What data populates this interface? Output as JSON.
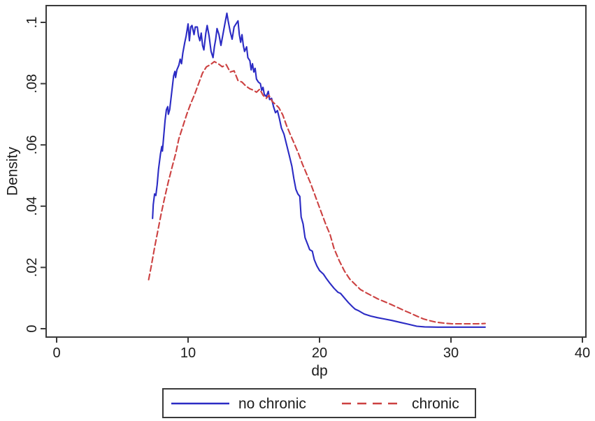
{
  "figure": {
    "background": "#ffffff",
    "border_color": "#3a3a3a",
    "text_color": "#1c1c1c"
  },
  "chart_data": {
    "type": "line",
    "title": "",
    "xlabel": "dp",
    "ylabel": "Density",
    "xlim": [
      0,
      40
    ],
    "ylim": [
      0,
      0.105
    ],
    "grid": false,
    "x_ticks": {
      "values": [
        0,
        10,
        20,
        30,
        40
      ],
      "labels": [
        "0",
        "10",
        "20",
        "30",
        "40"
      ]
    },
    "y_ticks": {
      "values": [
        0,
        0.02,
        0.04,
        0.06,
        0.08,
        0.1
      ],
      "labels": [
        "0",
        ".02",
        ".04",
        ".06",
        ".08",
        ".1"
      ]
    },
    "legend": {
      "position": "bottom-center",
      "entries": [
        "no chronic",
        "chronic"
      ]
    },
    "series": [
      {
        "name": "no chronic",
        "color": "#2b2bc4",
        "style": "solid",
        "points": [
          [
            7.3,
            0.036
          ],
          [
            7.35,
            0.0405
          ],
          [
            7.45,
            0.044
          ],
          [
            7.55,
            0.0435
          ],
          [
            7.65,
            0.047
          ],
          [
            7.75,
            0.052
          ],
          [
            7.9,
            0.057
          ],
          [
            8.0,
            0.0595
          ],
          [
            8.05,
            0.058
          ],
          [
            8.15,
            0.063
          ],
          [
            8.25,
            0.068
          ],
          [
            8.35,
            0.0715
          ],
          [
            8.45,
            0.0725
          ],
          [
            8.5,
            0.07
          ],
          [
            8.6,
            0.0715
          ],
          [
            8.75,
            0.077
          ],
          [
            8.9,
            0.0825
          ],
          [
            9.0,
            0.084
          ],
          [
            9.05,
            0.082
          ],
          [
            9.15,
            0.0845
          ],
          [
            9.3,
            0.086
          ],
          [
            9.4,
            0.088
          ],
          [
            9.5,
            0.0865
          ],
          [
            9.6,
            0.09
          ],
          [
            9.75,
            0.0935
          ],
          [
            9.85,
            0.0955
          ],
          [
            10.0,
            0.0995
          ],
          [
            10.1,
            0.094
          ],
          [
            10.2,
            0.0985
          ],
          [
            10.3,
            0.099
          ],
          [
            10.45,
            0.096
          ],
          [
            10.55,
            0.0985
          ],
          [
            10.7,
            0.0985
          ],
          [
            10.8,
            0.0955
          ],
          [
            10.9,
            0.094
          ],
          [
            11.0,
            0.0965
          ],
          [
            11.1,
            0.0925
          ],
          [
            11.2,
            0.091
          ],
          [
            11.35,
            0.0965
          ],
          [
            11.45,
            0.099
          ],
          [
            11.6,
            0.0955
          ],
          [
            11.75,
            0.0905
          ],
          [
            11.9,
            0.0885
          ],
          [
            12.0,
            0.092
          ],
          [
            12.1,
            0.0945
          ],
          [
            12.2,
            0.098
          ],
          [
            12.35,
            0.096
          ],
          [
            12.5,
            0.0925
          ],
          [
            12.65,
            0.096
          ],
          [
            12.8,
            0.0995
          ],
          [
            12.95,
            0.103
          ],
          [
            13.05,
            0.1005
          ],
          [
            13.2,
            0.097
          ],
          [
            13.35,
            0.0945
          ],
          [
            13.5,
            0.0985
          ],
          [
            13.65,
            0.0995
          ],
          [
            13.8,
            0.1005
          ],
          [
            13.9,
            0.096
          ],
          [
            14.0,
            0.0935
          ],
          [
            14.1,
            0.096
          ],
          [
            14.2,
            0.0925
          ],
          [
            14.3,
            0.0905
          ],
          [
            14.45,
            0.092
          ],
          [
            14.55,
            0.0885
          ],
          [
            14.7,
            0.0875
          ],
          [
            14.8,
            0.0845
          ],
          [
            14.9,
            0.0865
          ],
          [
            15.0,
            0.0838
          ],
          [
            15.1,
            0.085
          ],
          [
            15.2,
            0.0815
          ],
          [
            15.35,
            0.0805
          ],
          [
            15.5,
            0.08
          ],
          [
            15.6,
            0.0778
          ],
          [
            15.7,
            0.0788
          ],
          [
            15.8,
            0.0765
          ],
          [
            15.95,
            0.0758
          ],
          [
            16.1,
            0.0775
          ],
          [
            16.2,
            0.0748
          ],
          [
            16.35,
            0.0752
          ],
          [
            16.5,
            0.0725
          ],
          [
            16.65,
            0.0705
          ],
          [
            16.8,
            0.0712
          ],
          [
            16.95,
            0.0685
          ],
          [
            17.1,
            0.0655
          ],
          [
            17.3,
            0.0635
          ],
          [
            17.5,
            0.06
          ],
          [
            17.7,
            0.0565
          ],
          [
            17.9,
            0.053
          ],
          [
            18.05,
            0.049
          ],
          [
            18.2,
            0.0455
          ],
          [
            18.35,
            0.044
          ],
          [
            18.5,
            0.0432
          ],
          [
            18.6,
            0.0365
          ],
          [
            18.75,
            0.0342
          ],
          [
            18.9,
            0.0297
          ],
          [
            19.1,
            0.0275
          ],
          [
            19.25,
            0.0258
          ],
          [
            19.45,
            0.0253
          ],
          [
            19.6,
            0.0225
          ],
          [
            19.8,
            0.0205
          ],
          [
            20.0,
            0.019
          ],
          [
            20.3,
            0.0178
          ],
          [
            20.5,
            0.0165
          ],
          [
            20.8,
            0.0148
          ],
          [
            21.1,
            0.0132
          ],
          [
            21.4,
            0.0119
          ],
          [
            21.6,
            0.0115
          ],
          [
            21.9,
            0.01
          ],
          [
            22.2,
            0.0085
          ],
          [
            22.5,
            0.0072
          ],
          [
            22.7,
            0.0064
          ],
          [
            23.0,
            0.0058
          ],
          [
            23.4,
            0.0048
          ],
          [
            23.9,
            0.0041
          ],
          [
            24.4,
            0.0036
          ],
          [
            24.9,
            0.0032
          ],
          [
            25.5,
            0.0027
          ],
          [
            26.1,
            0.0021
          ],
          [
            26.7,
            0.0015
          ],
          [
            27.4,
            0.0008
          ],
          [
            28.0,
            0.0006
          ],
          [
            29.0,
            0.0005
          ],
          [
            30.0,
            0.0005
          ],
          [
            31.0,
            0.0005
          ],
          [
            32.0,
            0.0005
          ],
          [
            32.6,
            0.0005
          ]
        ]
      },
      {
        "name": "chronic",
        "color": "#cc4141",
        "style": "dashed",
        "points": [
          [
            7.0,
            0.016
          ],
          [
            7.2,
            0.0205
          ],
          [
            7.45,
            0.0265
          ],
          [
            7.7,
            0.032
          ],
          [
            7.95,
            0.0375
          ],
          [
            8.2,
            0.0425
          ],
          [
            8.5,
            0.048
          ],
          [
            8.8,
            0.053
          ],
          [
            9.05,
            0.057
          ],
          [
            9.3,
            0.062
          ],
          [
            9.6,
            0.066
          ],
          [
            9.9,
            0.07
          ],
          [
            10.2,
            0.0735
          ],
          [
            10.5,
            0.0765
          ],
          [
            10.8,
            0.08
          ],
          [
            11.1,
            0.0835
          ],
          [
            11.4,
            0.0855
          ],
          [
            11.7,
            0.0862
          ],
          [
            12.0,
            0.0872
          ],
          [
            12.3,
            0.0865
          ],
          [
            12.6,
            0.0855
          ],
          [
            12.9,
            0.0862
          ],
          [
            13.2,
            0.0838
          ],
          [
            13.5,
            0.0842
          ],
          [
            13.8,
            0.081
          ],
          [
            14.1,
            0.0805
          ],
          [
            14.4,
            0.0792
          ],
          [
            14.7,
            0.0783
          ],
          [
            15.0,
            0.0778
          ],
          [
            15.2,
            0.0772
          ],
          [
            15.45,
            0.0782
          ],
          [
            15.7,
            0.0762
          ],
          [
            15.95,
            0.0752
          ],
          [
            16.15,
            0.0762
          ],
          [
            16.4,
            0.0742
          ],
          [
            16.65,
            0.0732
          ],
          [
            16.9,
            0.0722
          ],
          [
            17.2,
            0.0698
          ],
          [
            17.5,
            0.0662
          ],
          [
            17.8,
            0.0632
          ],
          [
            18.1,
            0.0602
          ],
          [
            18.4,
            0.0572
          ],
          [
            18.7,
            0.0537
          ],
          [
            19.0,
            0.0507
          ],
          [
            19.3,
            0.0477
          ],
          [
            19.6,
            0.0442
          ],
          [
            19.9,
            0.0407
          ],
          [
            20.2,
            0.0372
          ],
          [
            20.5,
            0.0338
          ],
          [
            20.8,
            0.0308
          ],
          [
            21.1,
            0.0262
          ],
          [
            21.5,
            0.0222
          ],
          [
            21.9,
            0.0188
          ],
          [
            22.3,
            0.0162
          ],
          [
            22.7,
            0.0145
          ],
          [
            23.1,
            0.0128
          ],
          [
            23.6,
            0.0116
          ],
          [
            24.0,
            0.0107
          ],
          [
            24.4,
            0.0098
          ],
          [
            24.9,
            0.0089
          ],
          [
            25.4,
            0.008
          ],
          [
            25.9,
            0.007
          ],
          [
            26.4,
            0.006
          ],
          [
            26.9,
            0.0051
          ],
          [
            27.4,
            0.0041
          ],
          [
            27.9,
            0.0032
          ],
          [
            28.4,
            0.0026
          ],
          [
            28.9,
            0.0021
          ],
          [
            29.5,
            0.0018
          ],
          [
            30.1,
            0.0016
          ],
          [
            31.0,
            0.0016
          ],
          [
            32.0,
            0.0016
          ],
          [
            32.6,
            0.0017
          ]
        ]
      }
    ]
  }
}
